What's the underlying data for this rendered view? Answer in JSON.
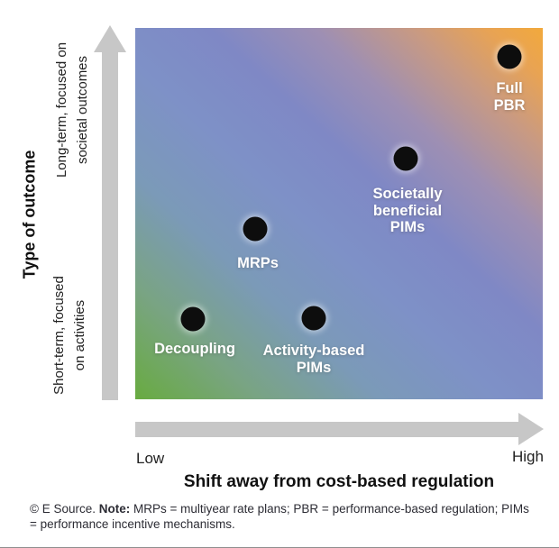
{
  "chart_data": {
    "type": "scatter",
    "title": "",
    "xlabel": "Shift away from cost-based regulation",
    "ylabel": "Type of outcome",
    "x_axis": {
      "min_label": "Low",
      "max_label": "High",
      "range": [
        0,
        1
      ]
    },
    "y_axis": {
      "min_label": "Short-term, focused on activities",
      "min_label_lines": [
        "Short-term, focused",
        "on activities"
      ],
      "max_label": "Long-term, focused on societal outcomes",
      "max_label_lines": [
        "Long-term, focused on",
        "societal outcomes"
      ],
      "range": [
        0,
        1
      ]
    },
    "points": [
      {
        "name": "decoupling",
        "label": "Decoupling",
        "lines": [
          "Decoupling"
        ],
        "x": 0.14,
        "y": 0.22
      },
      {
        "name": "activity-based-pims",
        "label": "Activity-based PIMs",
        "lines": [
          "Activity-based",
          "PIMs"
        ],
        "x": 0.44,
        "y": 0.22
      },
      {
        "name": "mrps",
        "label": "MRPs",
        "lines": [
          "MRPs"
        ],
        "x": 0.29,
        "y": 0.46
      },
      {
        "name": "societally-beneficial-pims",
        "label": "Societally beneficial PIMs",
        "lines": [
          "Societally",
          "beneficial",
          "PIMs"
        ],
        "x": 0.66,
        "y": 0.65
      },
      {
        "name": "full-pbr",
        "label": "Full PBR",
        "lines": [
          "Full",
          "PBR"
        ],
        "x": 0.92,
        "y": 0.92
      }
    ],
    "legend": null,
    "grid": false,
    "colors": {
      "gradient_bottom_left": "#68ab40",
      "gradient_center": "#7e8fc7",
      "gradient_top_right": "#f2a93c",
      "axis_arrow": "#c7c7c7",
      "dot": "#0d0d0d",
      "point_label": "#ffffff"
    }
  },
  "footer": {
    "copyright": "© E Source. ",
    "note_label": "Note:",
    "note_text": " MRPs = multiyear rate plans; PBR = performance-based regulation; PIMs = performance incentive mechanisms."
  }
}
